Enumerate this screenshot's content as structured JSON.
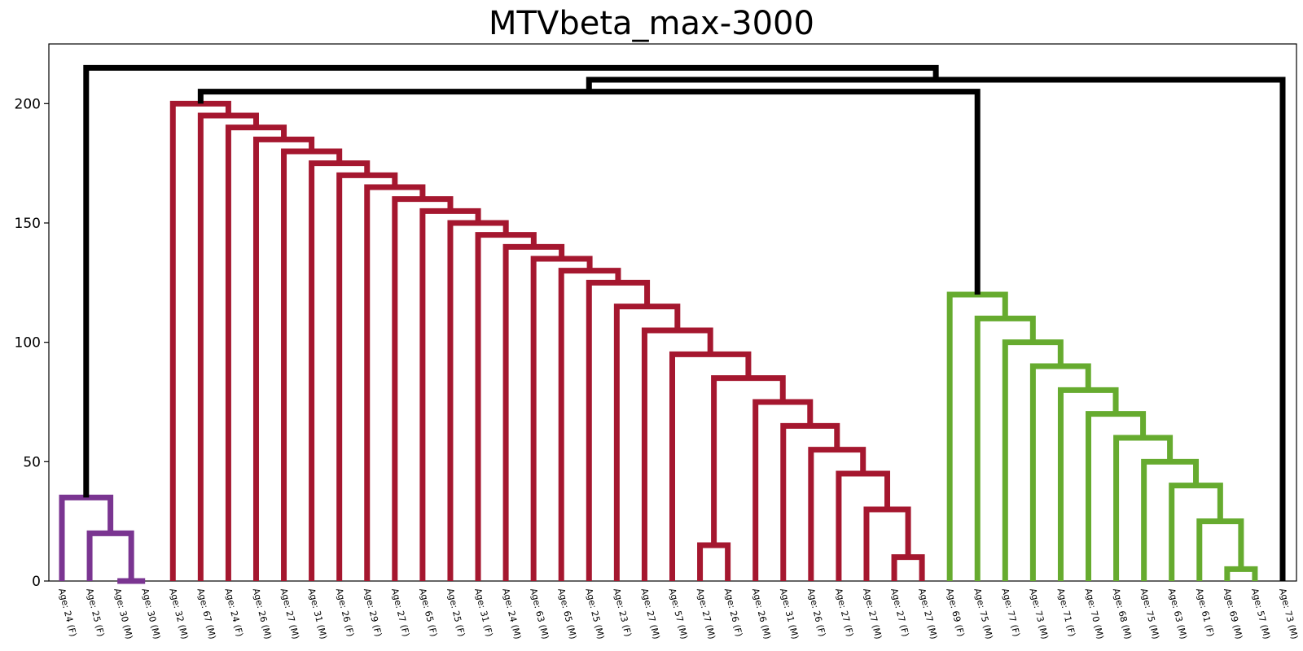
{
  "chart_data": {
    "type": "dendrogram",
    "title": "MTVbeta_max-3000",
    "xlabel": "",
    "ylabel": "",
    "ylim": [
      0,
      225
    ],
    "yticks": [
      0,
      50,
      100,
      150,
      200
    ],
    "grid": false,
    "colors": {
      "purple": "#7a3591",
      "red": "#a5172f",
      "green": "#66ab2f",
      "black": "#000000"
    },
    "leaves": [
      "Age: 24 (F)",
      "Age: 25 (F)",
      "Age: 30 (M)",
      "Age: 30 (M)",
      "Age: 32 (M)",
      "Age: 67 (M)",
      "Age: 24 (F)",
      "Age: 26 (M)",
      "Age: 27 (M)",
      "Age: 31 (M)",
      "Age: 26 (F)",
      "Age: 29 (F)",
      "Age: 27 (F)",
      "Age: 65 (F)",
      "Age: 25 (F)",
      "Age: 31 (F)",
      "Age: 24 (M)",
      "Age: 63 (M)",
      "Age: 65 (M)",
      "Age: 25 (M)",
      "Age: 23 (F)",
      "Age: 27 (M)",
      "Age: 57 (M)",
      "Age: 27 (M)",
      "Age: 26 (F)",
      "Age: 26 (M)",
      "Age: 31 (M)",
      "Age: 26 (F)",
      "Age: 27 (F)",
      "Age: 27 (M)",
      "Age: 27 (F)",
      "Age: 27 (M)",
      "Age: 69 (F)",
      "Age: 75 (M)",
      "Age: 77 (F)",
      "Age: 73 (M)",
      "Age: 71 (F)",
      "Age: 70 (M)",
      "Age: 68 (M)",
      "Age: 75 (M)",
      "Age: 63 (M)",
      "Age: 61 (F)",
      "Age: 69 (M)",
      "Age: 57 (M)",
      "Age: 73 (M)"
    ],
    "merges": [
      {
        "left": 2,
        "right": 3,
        "height": 0,
        "color": "purple"
      },
      {
        "left": 1,
        "right": "m0",
        "height": 20,
        "color": "purple"
      },
      {
        "left": 0,
        "right": "m1",
        "height": 35,
        "color": "purple"
      },
      {
        "left": 30,
        "right": 31,
        "height": 10,
        "color": "red"
      },
      {
        "left": 29,
        "right": "m3",
        "height": 30,
        "color": "red"
      },
      {
        "left": 28,
        "right": "m4",
        "height": 45,
        "color": "red"
      },
      {
        "left": 27,
        "right": "m5",
        "height": 55,
        "color": "red"
      },
      {
        "left": 26,
        "right": "m6",
        "height": 65,
        "color": "red"
      },
      {
        "left": 25,
        "right": "m7",
        "height": 75,
        "color": "red"
      },
      {
        "left": 23,
        "right": 24,
        "height": 15,
        "color": "red"
      },
      {
        "left": "m9",
        "right": "m8",
        "height": 85,
        "color": "red"
      },
      {
        "left": 22,
        "right": "m10",
        "height": 95,
        "color": "red"
      },
      {
        "left": 21,
        "right": "m11",
        "height": 105,
        "color": "red"
      },
      {
        "left": 20,
        "right": "m12",
        "height": 115,
        "color": "red"
      },
      {
        "left": 19,
        "right": "m13",
        "height": 125,
        "color": "red"
      },
      {
        "left": 18,
        "right": "m14",
        "height": 130,
        "color": "red"
      },
      {
        "left": 17,
        "right": "m15",
        "height": 135,
        "color": "red"
      },
      {
        "left": 16,
        "right": "m16",
        "height": 140,
        "color": "red"
      },
      {
        "left": 15,
        "right": "m17",
        "height": 145,
        "color": "red"
      },
      {
        "left": 14,
        "right": "m18",
        "height": 150,
        "color": "red"
      },
      {
        "left": 13,
        "right": "m19",
        "height": 155,
        "color": "red"
      },
      {
        "left": 12,
        "right": "m20",
        "height": 160,
        "color": "red"
      },
      {
        "left": 11,
        "right": "m21",
        "height": 165,
        "color": "red"
      },
      {
        "left": 10,
        "right": "m22",
        "height": 170,
        "color": "red"
      },
      {
        "left": 9,
        "right": "m23",
        "height": 175,
        "color": "red"
      },
      {
        "left": 8,
        "right": "m24",
        "height": 180,
        "color": "red"
      },
      {
        "left": 7,
        "right": "m25",
        "height": 185,
        "color": "red"
      },
      {
        "left": 6,
        "right": "m26",
        "height": 190,
        "color": "red"
      },
      {
        "left": 5,
        "right": "m27",
        "height": 195,
        "color": "red"
      },
      {
        "left": 4,
        "right": "m28",
        "height": 200,
        "color": "red"
      },
      {
        "left": 42,
        "right": 43,
        "height": 5,
        "color": "green"
      },
      {
        "left": 41,
        "right": "m30",
        "height": 25,
        "color": "green"
      },
      {
        "left": 40,
        "right": "m31",
        "height": 40,
        "color": "green"
      },
      {
        "left": 39,
        "right": "m32",
        "height": 50,
        "color": "green"
      },
      {
        "left": 38,
        "right": "m33",
        "height": 60,
        "color": "green"
      },
      {
        "left": 37,
        "right": "m34",
        "height": 70,
        "color": "green"
      },
      {
        "left": 36,
        "right": "m35",
        "height": 80,
        "color": "green"
      },
      {
        "left": 35,
        "right": "m36",
        "height": 90,
        "color": "green"
      },
      {
        "left": 34,
        "right": "m37",
        "height": 100,
        "color": "green"
      },
      {
        "left": 33,
        "right": "m38",
        "height": 110,
        "color": "green"
      },
      {
        "left": 32,
        "right": "m39",
        "height": 120,
        "color": "green"
      },
      {
        "left": "m29",
        "right": "m40",
        "height": 205,
        "color": "black"
      },
      {
        "left": "m41",
        "right": 44,
        "height": 210,
        "color": "black"
      },
      {
        "left": "m2",
        "right": "m42",
        "height": 215,
        "color": "black"
      }
    ]
  }
}
